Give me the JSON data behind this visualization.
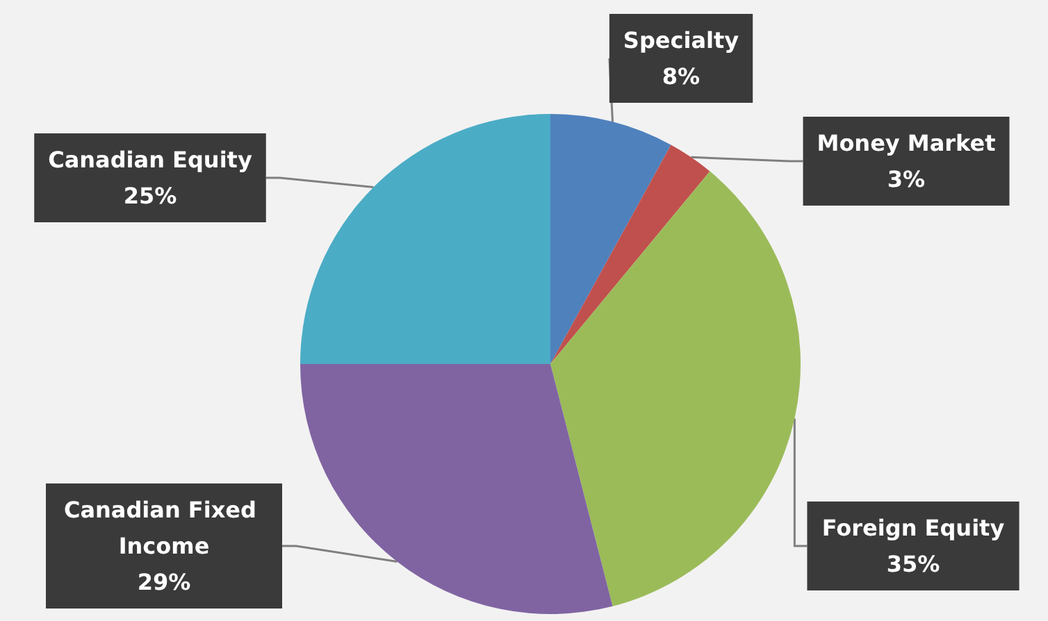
{
  "chart_data": {
    "type": "pie",
    "categories": [
      "Specialty",
      "Money Market",
      "Foreign Equity",
      "Canadian Fixed Income",
      "Canadian Equity"
    ],
    "values": [
      8,
      3,
      35,
      29,
      25
    ],
    "value_labels": [
      "8%",
      "3%",
      "35%",
      "29%",
      "25%"
    ],
    "colors": [
      "#4f81bd",
      "#c0504d",
      "#9bbb59",
      "#8064a2",
      "#4bacc6"
    ],
    "legend": false
  }
}
